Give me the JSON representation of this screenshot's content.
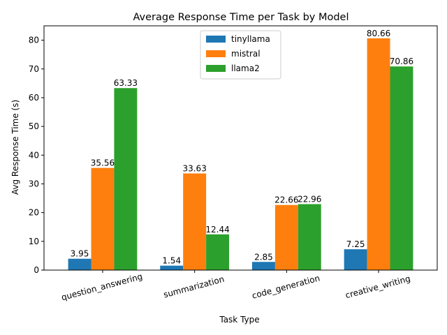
{
  "chart_data": {
    "type": "bar",
    "title": "Average Response Time per Task by Model",
    "xlabel": "Task Type",
    "ylabel": "Avg Response Time (s)",
    "categories": [
      "question_answering",
      "summarization",
      "code_generation",
      "creative_writing"
    ],
    "series": [
      {
        "name": "tinyllama",
        "color": "#1f77b4",
        "values": [
          3.95,
          1.54,
          2.85,
          7.25
        ]
      },
      {
        "name": "mistral",
        "color": "#ff7f0e",
        "values": [
          35.56,
          33.63,
          22.66,
          80.66
        ]
      },
      {
        "name": "llama2",
        "color": "#2ca02c",
        "values": [
          63.33,
          12.44,
          22.96,
          70.86
        ]
      }
    ],
    "ylim": [
      0,
      85
    ],
    "yticks": [
      0,
      10,
      20,
      30,
      40,
      50,
      60,
      70,
      80
    ],
    "legend_position": "top-center",
    "grid": false
  }
}
